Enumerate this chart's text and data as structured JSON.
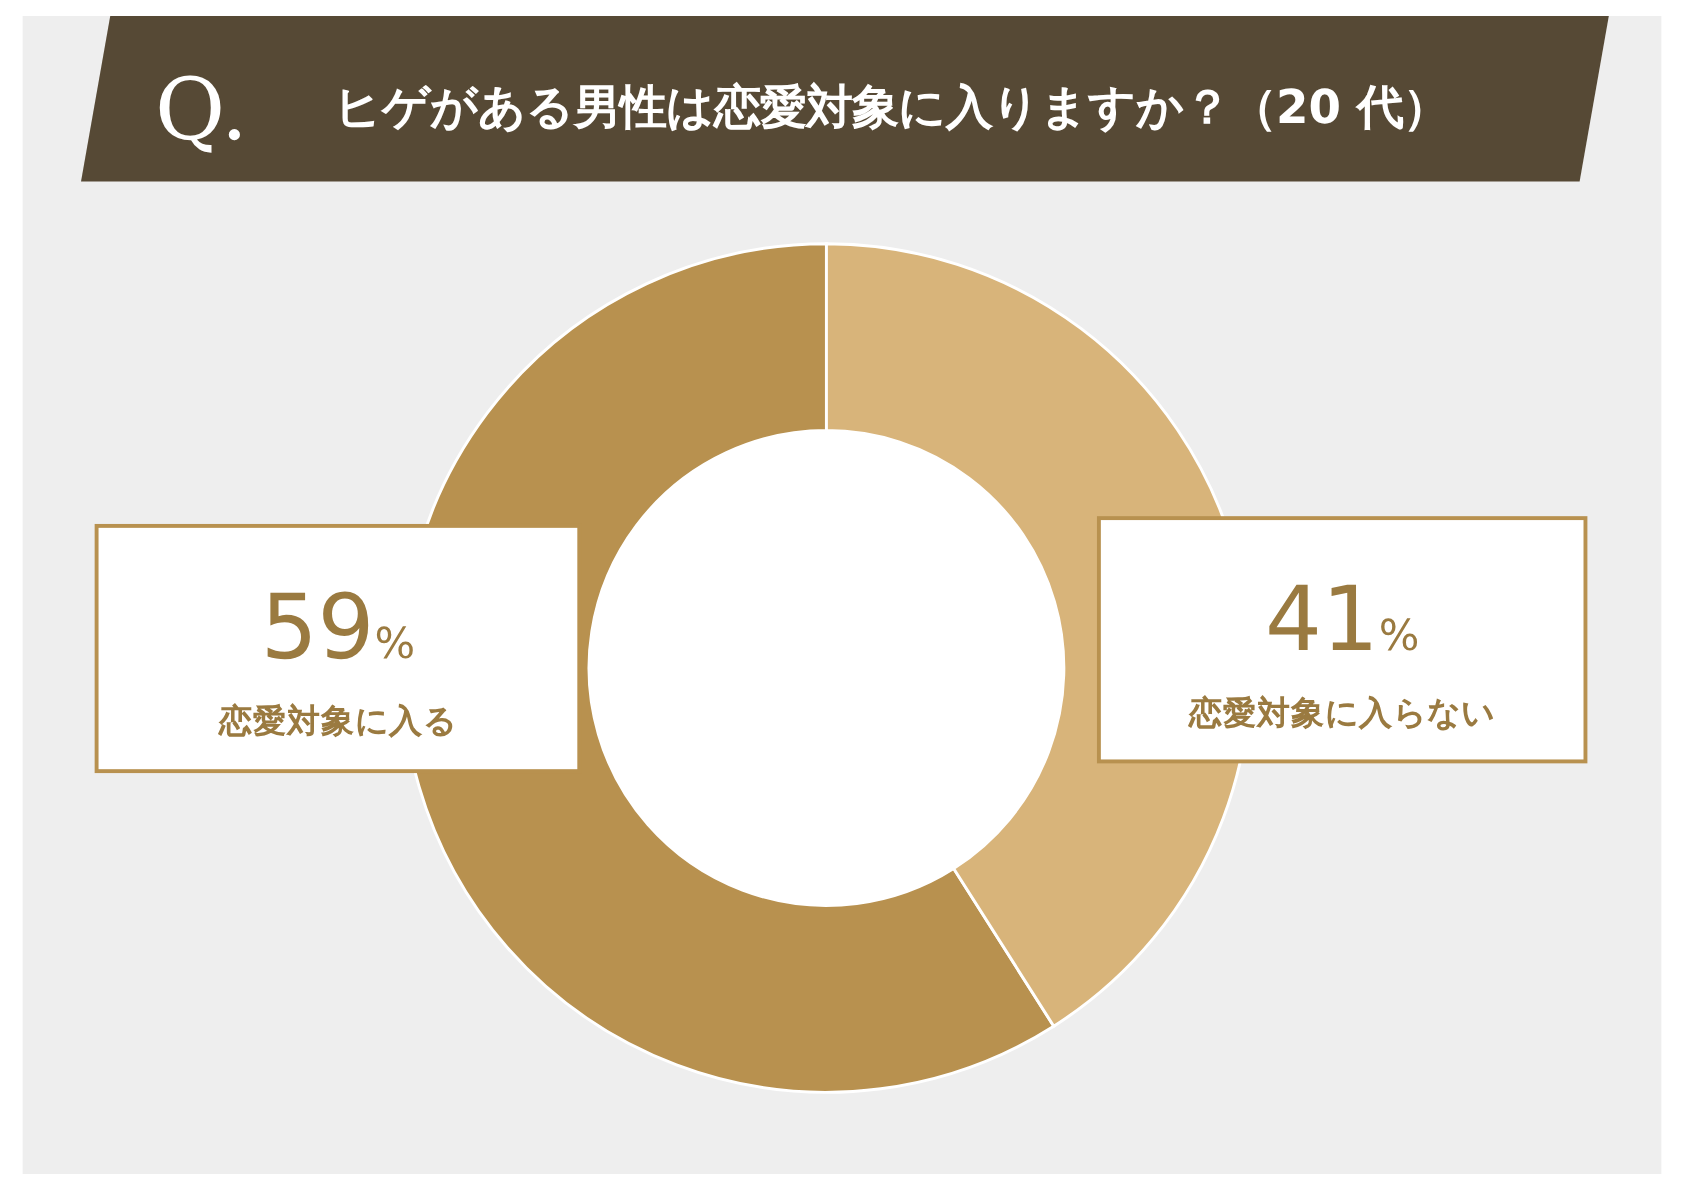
{
  "chart_data": {
    "type": "donut",
    "title": "ヒゲがある男性は恋愛対象に入りますか？（20 代）",
    "annotations": [
      "Q."
    ],
    "categories": [
      "恋愛対象に入る",
      "恋愛対象に入らない"
    ],
    "values": [
      59,
      41
    ],
    "value_labels": [
      "59%",
      "41%"
    ],
    "colors": [
      "#b8914f",
      "#d8b47a"
    ]
  }
}
